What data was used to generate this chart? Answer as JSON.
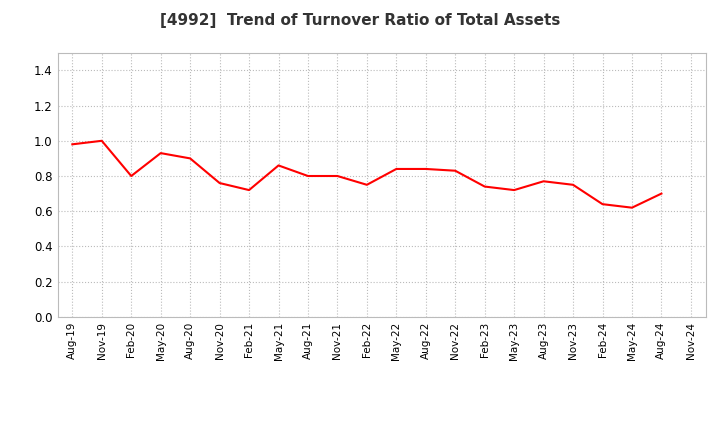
{
  "title": "[4992]  Trend of Turnover Ratio of Total Assets",
  "title_fontsize": 11,
  "title_color": "#333333",
  "line_color": "#FF0000",
  "line_width": 1.5,
  "background_color": "#FFFFFF",
  "grid_color": "#BBBBBB",
  "ylim": [
    0.0,
    1.5
  ],
  "yticks": [
    0.0,
    0.2,
    0.4,
    0.6,
    0.8,
    1.0,
    1.2,
    1.4
  ],
  "x_labels": [
    "Aug-19",
    "Nov-19",
    "Feb-20",
    "May-20",
    "Aug-20",
    "Nov-20",
    "Feb-21",
    "May-21",
    "Aug-21",
    "Nov-21",
    "Feb-22",
    "May-22",
    "Aug-22",
    "Nov-22",
    "Feb-23",
    "May-23",
    "Aug-23",
    "Nov-23",
    "Feb-24",
    "May-24",
    "Aug-24",
    "Nov-24"
  ],
  "values": [
    0.98,
    1.0,
    0.8,
    0.93,
    0.9,
    0.76,
    0.72,
    0.86,
    0.8,
    0.8,
    0.75,
    0.84,
    0.84,
    0.83,
    0.74,
    0.72,
    0.77,
    0.75,
    0.64,
    0.62,
    0.7,
    null
  ]
}
